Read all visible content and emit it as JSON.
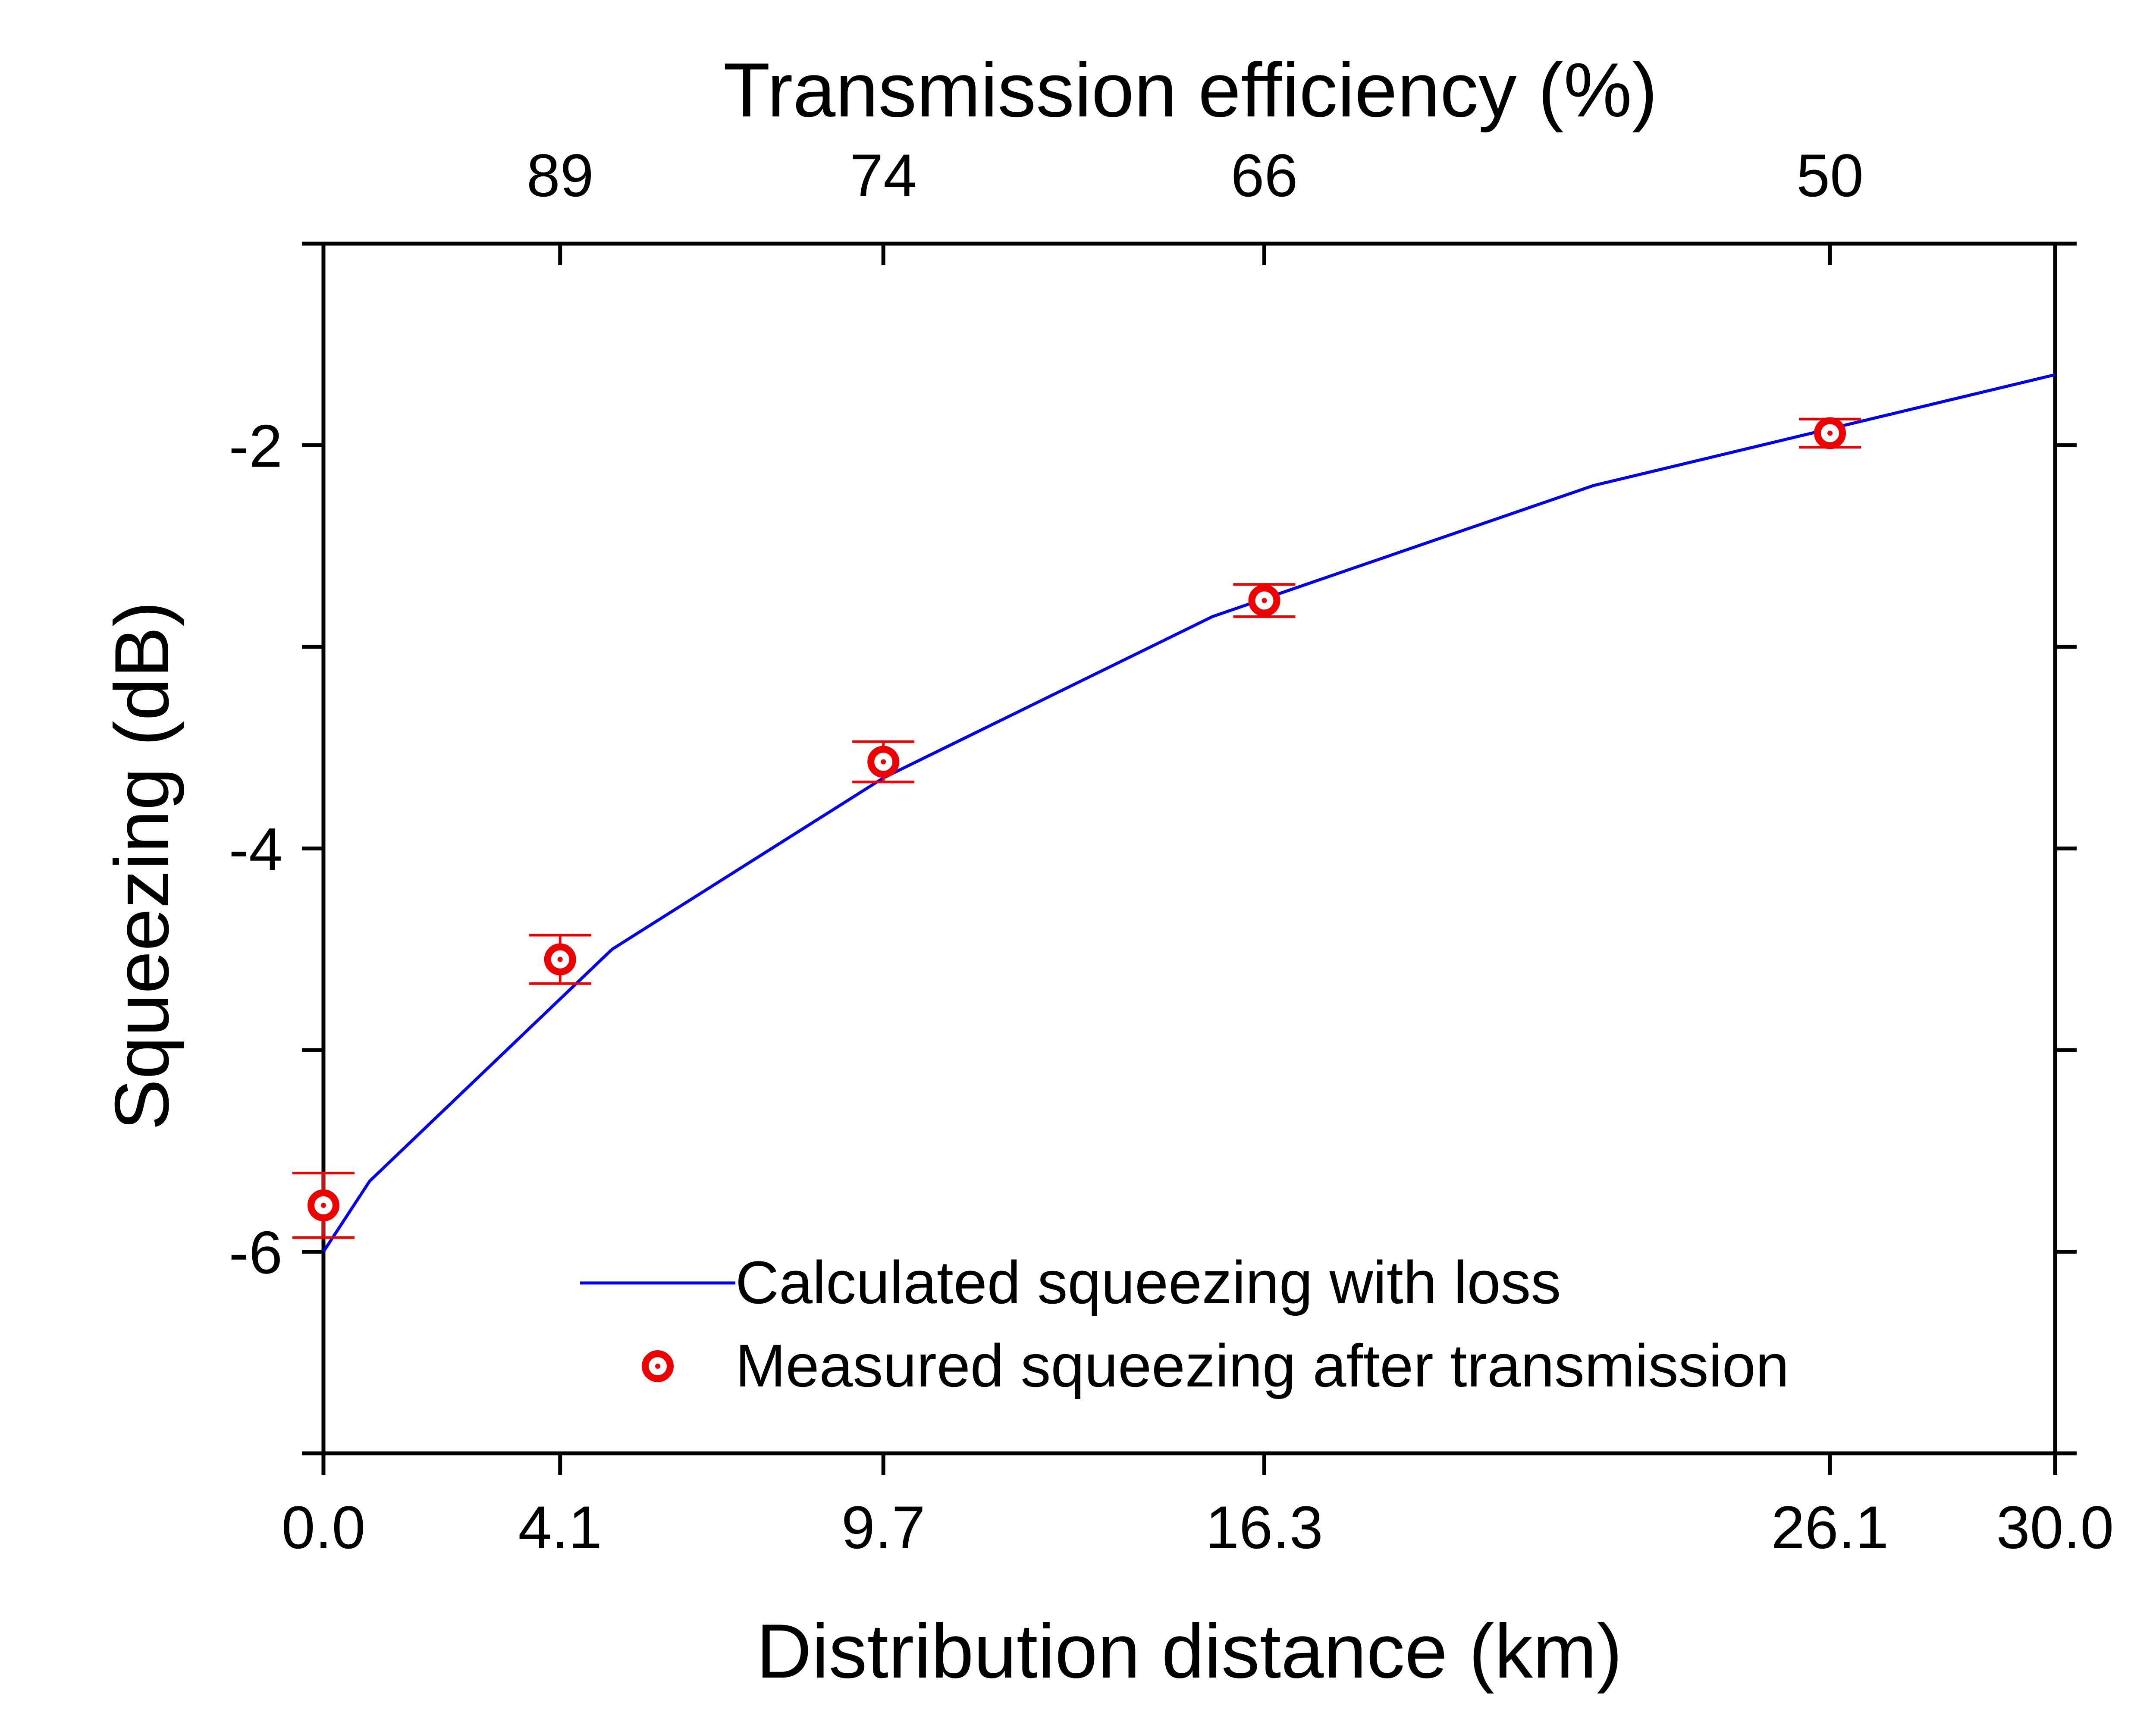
{
  "chart_data": {
    "type": "scatter",
    "title": "",
    "xlabel": "Distribution distance (km)",
    "ylabel": "Squeezing (dB)",
    "x2label": "Transmission efficiency (%)",
    "xlim": [
      0,
      30
    ],
    "ylim": [
      -7,
      -1
    ],
    "x_ticks": [
      {
        "value": 0.0,
        "label": "0.0"
      },
      {
        "value": 4.1,
        "label": "4.1"
      },
      {
        "value": 9.7,
        "label": "9.7"
      },
      {
        "value": 16.3,
        "label": "16.3"
      },
      {
        "value": 26.1,
        "label": "26.1"
      },
      {
        "value": 30.0,
        "label": "30.0"
      }
    ],
    "x2_ticks": [
      {
        "value": 4.1,
        "label": "89"
      },
      {
        "value": 9.7,
        "label": "74"
      },
      {
        "value": 16.3,
        "label": "66"
      },
      {
        "value": 26.1,
        "label": "50"
      }
    ],
    "y_ticks": [
      {
        "value": -2,
        "label": "-2"
      },
      {
        "value": -4,
        "label": "-4"
      },
      {
        "value": -6,
        "label": "-6"
      }
    ],
    "y_minor_ticks": [
      -1,
      -3,
      -5,
      -7
    ],
    "grid": false,
    "legend_position": "bottom-right",
    "series": [
      {
        "name": "Calculated squeezing with loss",
        "kind": "line",
        "color": "#0000ee",
        "x": [
          0.0,
          0.8,
          5.0,
          9.7,
          15.4,
          22.0,
          30.0
        ],
        "y": [
          -6.0,
          -5.65,
          -4.5,
          -3.65,
          -2.85,
          -2.2,
          -1.65
        ]
      },
      {
        "name": "Measured squeezing after transmission",
        "kind": "scatter",
        "color": "#ee0000",
        "marker": "circle-dot",
        "x": [
          0.0,
          4.1,
          9.7,
          16.3,
          26.1
        ],
        "y": [
          -5.77,
          -4.55,
          -3.57,
          -2.77,
          -1.94
        ],
        "err": [
          0.16,
          0.12,
          0.1,
          0.08,
          0.07
        ]
      }
    ]
  }
}
